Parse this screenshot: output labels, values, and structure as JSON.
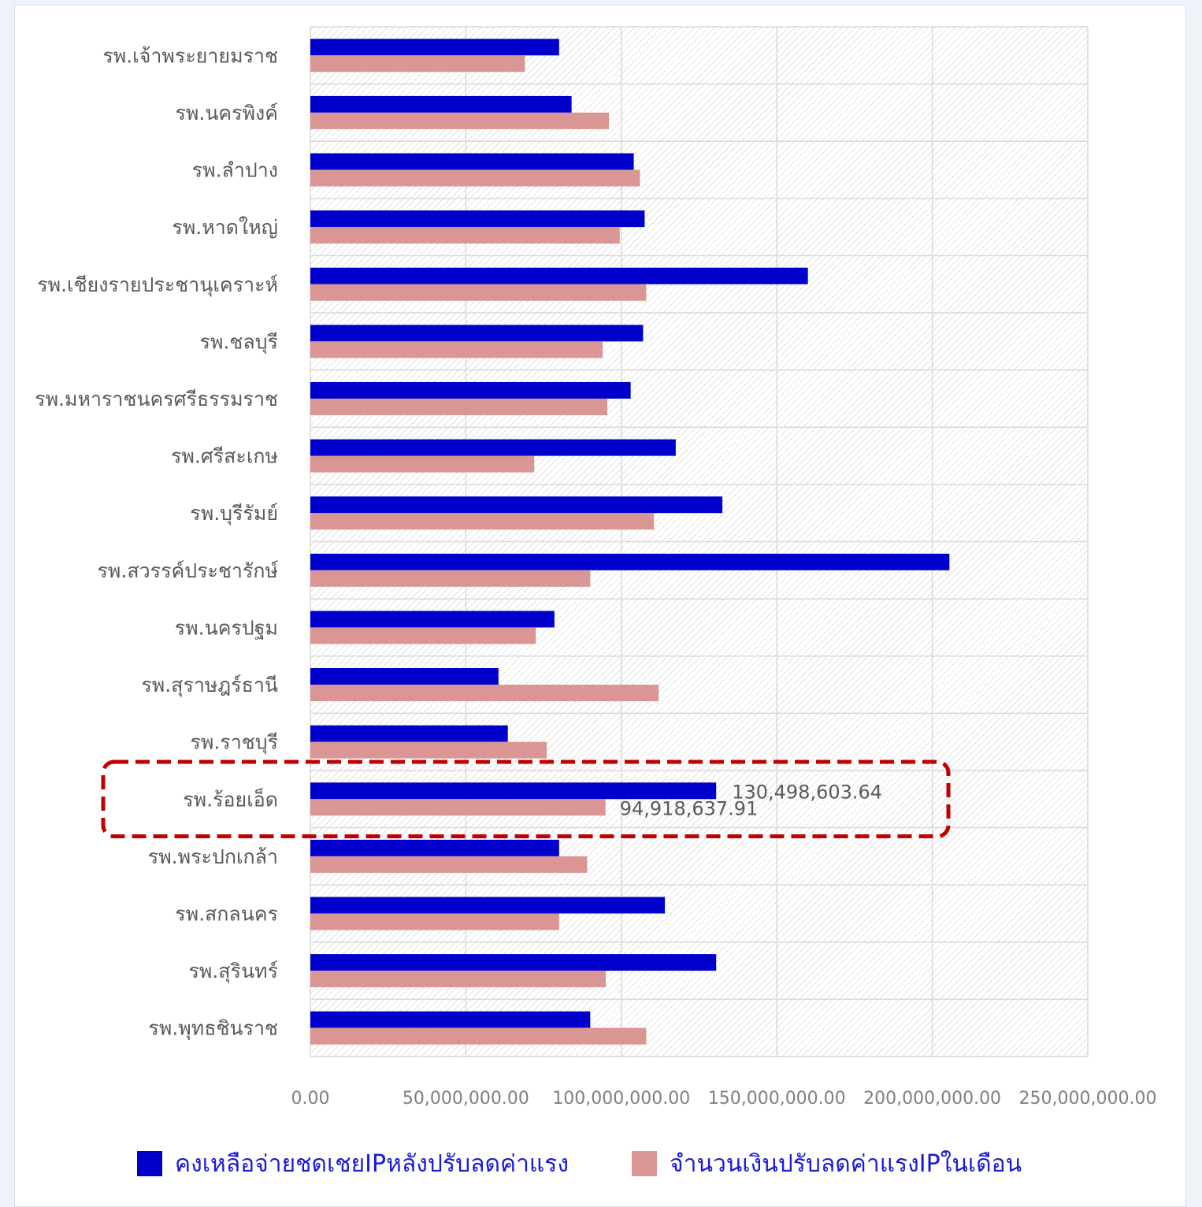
{
  "colors": {
    "series_1": "#0000cc",
    "series_2": "#d99694",
    "highlight_box": "#c00000",
    "grid": "#d9d9d9",
    "plot_hatch": "#c8c8c8"
  },
  "chart_data": {
    "type": "bar",
    "orientation": "horizontal",
    "categories": [
      "รพ.เจ้าพระยายมราช",
      "รพ.นครพิงค์",
      "รพ.ลำปาง",
      "รพ.หาดใหญ่",
      "รพ.เชียงรายประชานุเคราะห์",
      "รพ.ชลบุรี",
      "รพ.มหาราชนครศรีธรรมราช",
      "รพ.ศรีสะเกษ",
      "รพ.บุรีรัมย์",
      "รพ.สวรรค์ประชารักษ์",
      "รพ.นครปฐม",
      "รพ.สุราษฎร์ธานี",
      "รพ.ราชบุรี",
      "รพ.ร้อยเอ็ด",
      "รพ.พระปกเกล้า",
      "รพ.สกลนคร",
      "รพ.สุรินทร์",
      "รพ.พุทธชินราช"
    ],
    "series": [
      {
        "name": "คงเหลือจ่ายชดเชยIPหลังปรับลดค่าแรง",
        "values": [
          80000000,
          84000000,
          104000000,
          107500000,
          160000000,
          107000000,
          103000000,
          117500000,
          132500000,
          205500000,
          78500000,
          60500000,
          63500000,
          130498603.64,
          80000000,
          114000000,
          130500000,
          90000000
        ]
      },
      {
        "name": "จำนวนเงินปรับลดค่าแรงIPในเดือน",
        "values": [
          69000000,
          96000000,
          106000000,
          99500000,
          108000000,
          94000000,
          95500000,
          72000000,
          110500000,
          90000000,
          72500000,
          112000000,
          76000000,
          94918637.91,
          89000000,
          80000000,
          95000000,
          108000000
        ]
      }
    ],
    "data_labels": {
      "category": "รพ.ร้อยเอ็ด",
      "series_1": "130,498,603.64",
      "series_2": "94,918,637.91"
    },
    "highlighted_category": "รพ.ร้อยเอ็ด",
    "xlim": [
      0,
      250000000
    ],
    "x_ticks": [
      0,
      50000000,
      100000000,
      150000000,
      200000000,
      250000000
    ],
    "x_tick_labels": [
      "0.00",
      "50,000,000.00",
      "100,000,000.00",
      "150,000,000.00",
      "200,000,000.00",
      "250,000,000.00"
    ],
    "title": "",
    "xlabel": "",
    "ylabel": "",
    "grid": true,
    "legend_position": "bottom"
  }
}
